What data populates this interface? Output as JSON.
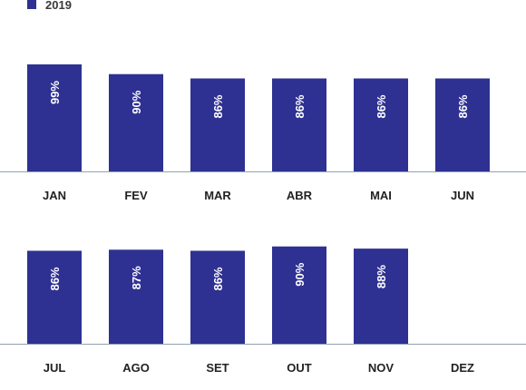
{
  "chart_data": {
    "type": "bar",
    "legend": [
      {
        "name": "2019",
        "color": "#2e3192"
      }
    ],
    "series": [
      {
        "name": "2019",
        "categories": [
          "JAN",
          "FEV",
          "MAR",
          "ABR",
          "MAI",
          "JUN",
          "JUL",
          "AGO",
          "SET",
          "OUT",
          "NOV",
          "DEZ"
        ],
        "values": [
          99,
          90,
          86,
          86,
          86,
          86,
          86,
          87,
          86,
          90,
          88,
          null
        ],
        "labels": [
          "99%",
          "90%",
          "86%",
          "86%",
          "86%",
          "86%",
          "86%",
          "87%",
          "86%",
          "90%",
          "88%",
          ""
        ]
      }
    ],
    "axis_color": "#8fa3b5",
    "bar_color": "#2e3192",
    "grid": false
  }
}
